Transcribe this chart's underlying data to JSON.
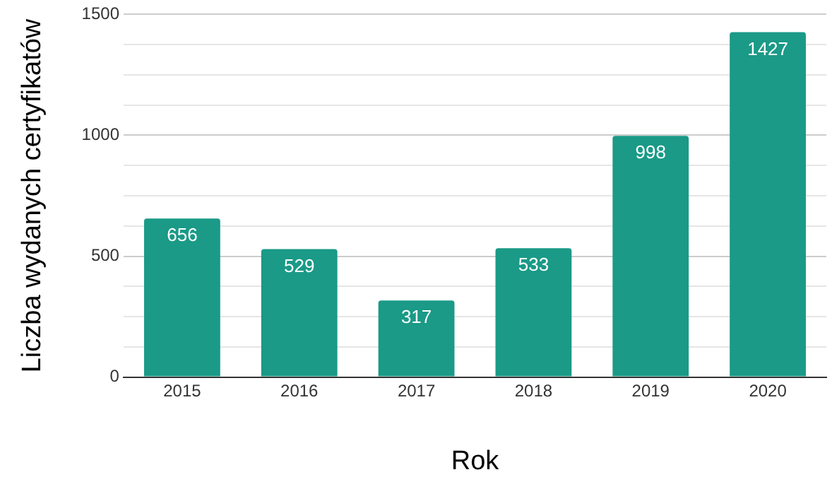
{
  "chart_data": {
    "type": "bar",
    "xlabel": "Rok",
    "ylabel": "Liczba wydanych certyfikatów",
    "categories": [
      "2015",
      "2016",
      "2017",
      "2018",
      "2019",
      "2020"
    ],
    "values": [
      656,
      529,
      317,
      533,
      998,
      1427
    ],
    "color": "#1a9a87",
    "ylim": [
      0,
      1500
    ],
    "yticks": [
      0,
      {
        "value": 125,
        "label": null
      },
      {
        "value": 250,
        "label": null
      },
      {
        "value": 375,
        "label": null
      },
      500,
      {
        "value": 625,
        "label": null
      },
      {
        "value": 750,
        "label": null
      },
      {
        "value": 875,
        "label": null
      },
      1000,
      {
        "value": 1125,
        "label": null
      },
      {
        "value": 1250,
        "label": null
      },
      {
        "value": 1375,
        "label": null
      },
      1500
    ],
    "grid": "y",
    "data_labels": true
  }
}
